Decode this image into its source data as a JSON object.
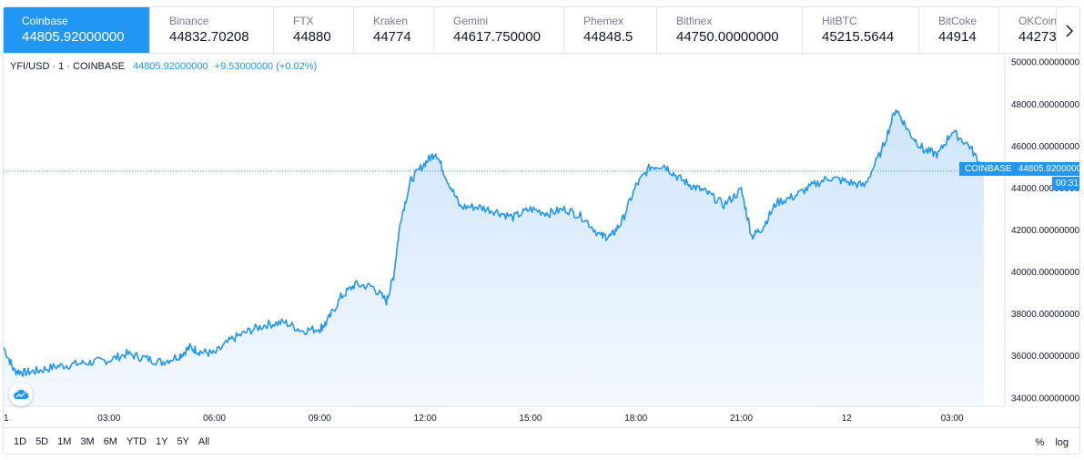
{
  "exchanges": [
    {
      "name": "Coinbase",
      "price": "44805.92000000",
      "active": true
    },
    {
      "name": "Binance",
      "price": "44832.70208"
    },
    {
      "name": "FTX",
      "price": "44880"
    },
    {
      "name": "Kraken",
      "price": "44774"
    },
    {
      "name": "Gemini",
      "price": "44617.750000"
    },
    {
      "name": "Phemex",
      "price": "44848.5"
    },
    {
      "name": "Bitfinex",
      "price": "44750.00000000"
    },
    {
      "name": "HitBTC",
      "price": "45215.5644"
    },
    {
      "name": "BitCoke",
      "price": "44914"
    },
    {
      "name": "OKCoin",
      "price": "44273"
    }
  ],
  "legend": {
    "symbol": "YFI/USD · 1 · COINBASE",
    "value": "44805.92000000",
    "change": "+9.53000000 (+0.02%)"
  },
  "price_tag": {
    "source": "COINBASE",
    "value": "44805.92000000",
    "countdown": "00:31"
  },
  "ranges": [
    "1D",
    "5D",
    "1M",
    "3M",
    "6M",
    "YTD",
    "1Y",
    "5Y",
    "All"
  ],
  "scale_buttons": {
    "percent": "%",
    "log": "log"
  },
  "colors": {
    "accent": "#2196f3",
    "area_top": "#cfe5fb",
    "area_bottom": "#f4f9fe"
  },
  "icons": {
    "next": "chevron-right-icon",
    "logo": "tradingview-cloud-icon"
  },
  "chart_data": {
    "type": "area",
    "symbol": "YFI/USD",
    "interval": "1",
    "ylim": [
      33600,
      50400
    ],
    "y_ticks": [
      34000,
      36000,
      38000,
      40000,
      42000,
      44000,
      46000,
      48000,
      50000
    ],
    "y_tick_labels": [
      "34000.00000000",
      "36000.00000000",
      "38000.00000000",
      "40000.00000000",
      "42000.00000000",
      "44000.00000000",
      "46000.00000000",
      "48000.00000000",
      "50000.00000000"
    ],
    "x_tick_labels": [
      "03:00",
      "06:00",
      "09:00",
      "12:00",
      "15:00",
      "18:00",
      "21:00",
      "12",
      "03:00"
    ],
    "x_tick_hours": [
      3,
      6,
      9,
      12,
      15,
      18,
      21,
      24,
      27
    ],
    "x_edge_label": "1",
    "x_edge_hour": 0,
    "xlim_hours": [
      0,
      28.5
    ],
    "last_price": 44805.92,
    "x": [
      0,
      0.3,
      0.6,
      1.0,
      1.5,
      2.0,
      2.5,
      3.0,
      3.5,
      4.0,
      4.5,
      5.0,
      5.3,
      5.6,
      6.0,
      6.5,
      7.0,
      7.5,
      8.0,
      8.5,
      9.0,
      9.2,
      9.6,
      10.0,
      10.5,
      10.9,
      11.1,
      11.3,
      11.6,
      12.0,
      12.3,
      12.6,
      13.0,
      13.5,
      14.0,
      14.5,
      15.0,
      15.5,
      16.0,
      16.5,
      17.0,
      17.3,
      17.6,
      18.0,
      18.4,
      18.8,
      19.2,
      19.6,
      20.0,
      20.5,
      21.0,
      21.3,
      21.6,
      22.0,
      22.5,
      23.0,
      23.5,
      24.0,
      24.5,
      25.0,
      25.4,
      25.8,
      26.2,
      26.6,
      27.0,
      27.5,
      27.9
    ],
    "y": [
      36400,
      35300,
      35200,
      35300,
      35500,
      35600,
      35700,
      35800,
      36100,
      35900,
      35700,
      36000,
      36400,
      36200,
      36100,
      36800,
      37200,
      37500,
      37600,
      37200,
      37300,
      37600,
      38800,
      39400,
      39300,
      38600,
      39800,
      42500,
      44400,
      45200,
      45700,
      44500,
      43100,
      43100,
      42900,
      42600,
      43000,
      42800,
      43000,
      42600,
      41700,
      41700,
      42400,
      44100,
      45000,
      45100,
      44500,
      44100,
      43800,
      43200,
      43900,
      41700,
      42100,
      43300,
      43600,
      44100,
      44500,
      44300,
      44100,
      45800,
      47800,
      46600,
      45800,
      45600,
      46700,
      46000,
      44806
    ]
  }
}
